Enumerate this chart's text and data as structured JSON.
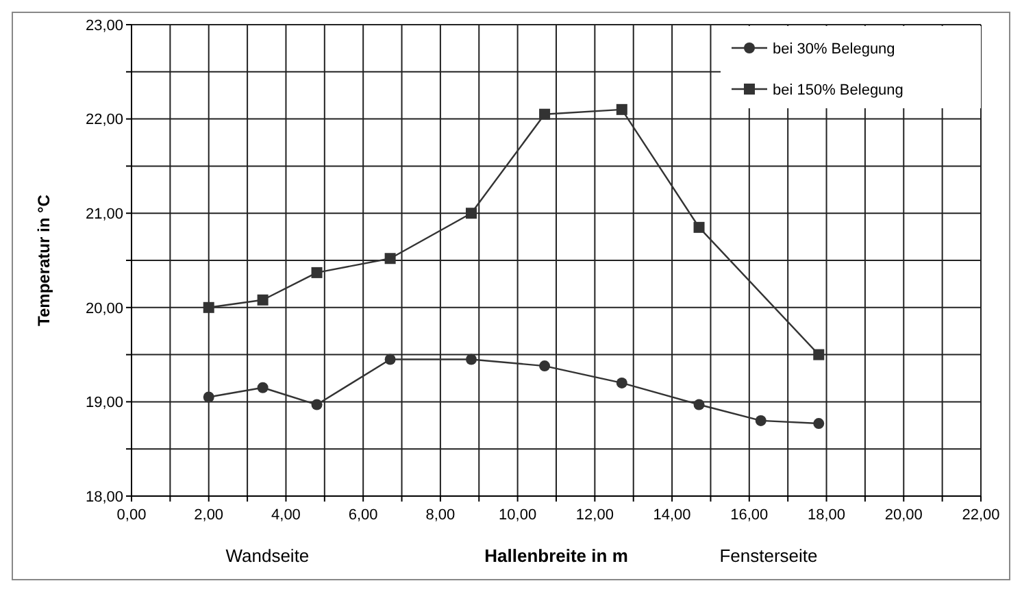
{
  "chart_data": {
    "type": "line",
    "ylabel": "Temperatur in °C",
    "xlabel": "Hallenbreite in m",
    "annotations": [
      "Wandseite",
      "Fensterseite"
    ],
    "xlim": [
      0,
      22
    ],
    "ylim": [
      18,
      23
    ],
    "xticks": [
      {
        "value": 0,
        "label": "0,00"
      },
      {
        "value": 1,
        "label": null
      },
      {
        "value": 2,
        "label": "2,00"
      },
      {
        "value": 3,
        "label": null
      },
      {
        "value": 4,
        "label": "4,00"
      },
      {
        "value": 5,
        "label": null
      },
      {
        "value": 6,
        "label": "6,00"
      },
      {
        "value": 7,
        "label": null
      },
      {
        "value": 8,
        "label": "8,00"
      },
      {
        "value": 9,
        "label": null
      },
      {
        "value": 10,
        "label": "10,00"
      },
      {
        "value": 11,
        "label": null
      },
      {
        "value": 12,
        "label": "12,00"
      },
      {
        "value": 13,
        "label": null
      },
      {
        "value": 14,
        "label": "14,00"
      },
      {
        "value": 15,
        "label": null
      },
      {
        "value": 16,
        "label": "16,00"
      },
      {
        "value": 17,
        "label": null
      },
      {
        "value": 18,
        "label": "18,00"
      },
      {
        "value": 19,
        "label": null
      },
      {
        "value": 20,
        "label": "20,00"
      },
      {
        "value": 21,
        "label": null
      },
      {
        "value": 22,
        "label": "22,00"
      }
    ],
    "yticks": [
      {
        "value": 18,
        "label": "18,00"
      },
      {
        "value": 18.5,
        "label": null
      },
      {
        "value": 19,
        "label": "19,00"
      },
      {
        "value": 19.5,
        "label": null
      },
      {
        "value": 20,
        "label": "20,00"
      },
      {
        "value": 20.5,
        "label": null
      },
      {
        "value": 21,
        "label": "21,00"
      },
      {
        "value": 21.5,
        "label": null
      },
      {
        "value": 22,
        "label": "22,00"
      },
      {
        "value": 22.5,
        "label": null
      },
      {
        "value": 23,
        "label": "23,00"
      }
    ],
    "grid": true,
    "legend": "top right",
    "series": [
      {
        "name": "bei 30% Belegung",
        "color": "#333333",
        "marker": "circle",
        "x": [
          2,
          3.4,
          4.8,
          6.7,
          8.8,
          10.7,
          12.7,
          14.7,
          16.3,
          17.8
        ],
        "values": [
          19.05,
          19.15,
          18.97,
          19.45,
          19.45,
          19.38,
          19.2,
          18.97,
          18.8,
          18.77
        ]
      },
      {
        "name": "bei 150% Belegung",
        "color": "#333333",
        "marker": "square",
        "x": [
          2,
          3.4,
          4.8,
          6.7,
          8.8,
          10.7,
          12.7,
          14.7,
          17.8
        ],
        "values": [
          20.0,
          20.08,
          20.37,
          20.52,
          21.0,
          22.05,
          22.1,
          20.85,
          19.5
        ]
      }
    ]
  }
}
